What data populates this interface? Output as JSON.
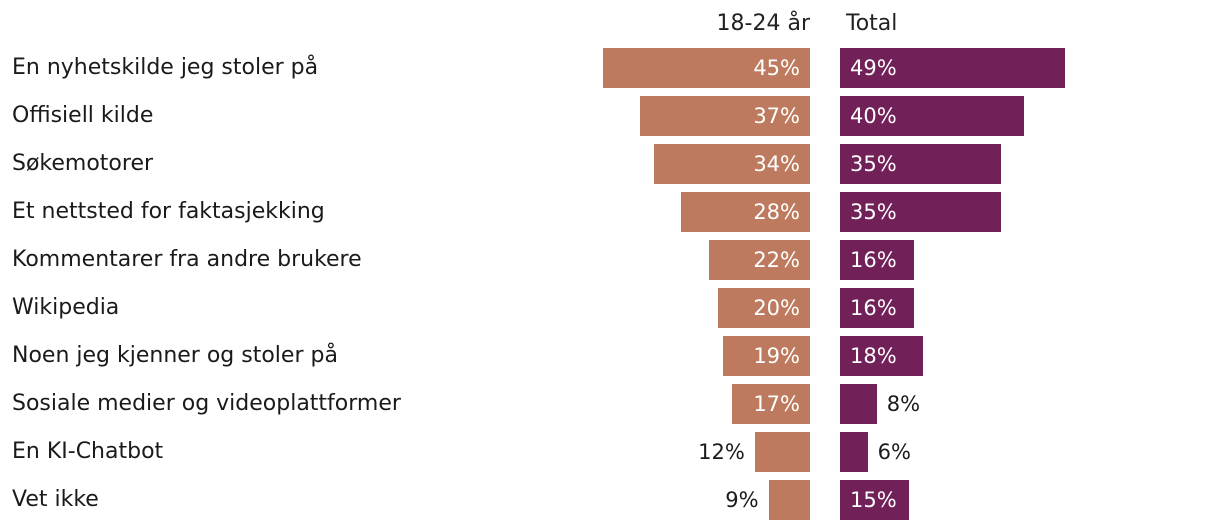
{
  "chart_data": {
    "type": "bar",
    "orientation": "horizontal",
    "title": "",
    "categories": [
      "En nyhetskilde jeg stoler på",
      "Offisiell kilde",
      "Søkemotorer",
      "Et nettsted for faktasjekking",
      "Kommentarer fra andre brukere",
      "Wikipedia",
      "Noen jeg kjenner og stoler på",
      "Sosiale medier og videoplattformer",
      "En KI-Chatbot",
      "Vet ikke"
    ],
    "series": [
      {
        "name": "18-24 år",
        "color": "#bd7a5e",
        "values": [
          45,
          37,
          34,
          28,
          22,
          20,
          19,
          17,
          12,
          9
        ],
        "labels": [
          "45%",
          "37%",
          "34%",
          "28%",
          "22%",
          "20%",
          "19%",
          "17%",
          "12%",
          "9%"
        ]
      },
      {
        "name": "Total",
        "color": "#722058",
        "values": [
          49,
          40,
          35,
          35,
          16,
          16,
          18,
          8,
          6,
          15
        ],
        "labels": [
          "49%",
          "40%",
          "35%",
          "35%",
          "16%",
          "16%",
          "18%",
          "8%",
          "6%",
          "15%"
        ]
      }
    ],
    "xlabel": "",
    "ylabel": "",
    "grid": false
  }
}
